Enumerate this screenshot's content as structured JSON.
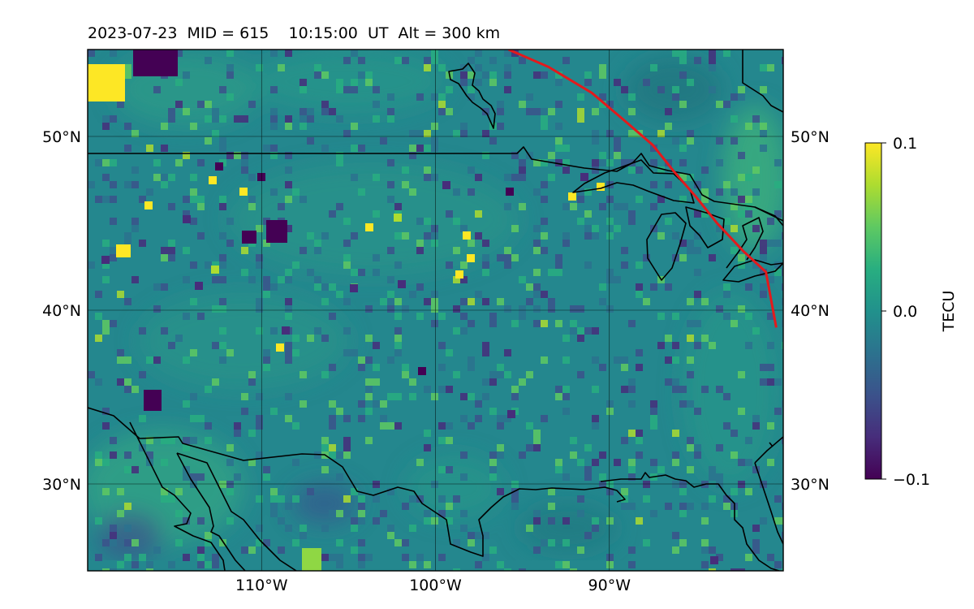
{
  "title": "2023-07-23  MID = 615    10:15:00  UT  Alt = 300 km",
  "map": {
    "lon_range": [
      -120,
      -80
    ],
    "lat_range": [
      25,
      55
    ],
    "lat_ticks": [
      {
        "value": 50,
        "label": "50°N"
      },
      {
        "value": 40,
        "label": "40°N"
      },
      {
        "value": 30,
        "label": "30°N"
      }
    ],
    "lon_ticks": [
      {
        "value": -110,
        "label": "110°W"
      },
      {
        "value": -100,
        "label": "100°W"
      },
      {
        "value": -90,
        "label": "90°W"
      }
    ],
    "gridlines": true,
    "terminator_color": "#e31a1c",
    "terminator": [
      [
        -95.8,
        55
      ],
      [
        -93.5,
        54
      ],
      [
        -91,
        52.5
      ],
      [
        -89,
        50.8
      ],
      [
        -87.5,
        49.5
      ],
      [
        -86.3,
        48
      ],
      [
        -85,
        46.5
      ],
      [
        -83.8,
        45
      ],
      [
        -82.3,
        43.4
      ],
      [
        -81,
        42.2
      ],
      [
        -80.4,
        39
      ]
    ]
  },
  "colorbar": {
    "label": "TECU",
    "min": -0.1,
    "max": 0.1,
    "ticks": [
      {
        "value": 0.1,
        "label": "0.1"
      },
      {
        "value": 0.0,
        "label": "0.0"
      },
      {
        "value": -0.1,
        "label": "−0.1"
      }
    ],
    "colormap": "viridis"
  }
}
